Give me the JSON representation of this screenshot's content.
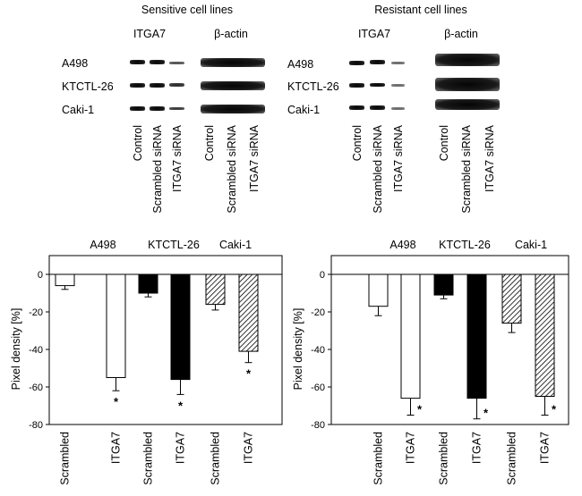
{
  "blots": [
    {
      "title": "Sensitive cell lines",
      "panels": [
        "ITGA7",
        "β-actin"
      ],
      "rows": [
        "A498",
        "KTCTL-26",
        "Caki-1"
      ],
      "lanes": [
        "Control",
        "Scrambled siRNA",
        "ITGA7 siRNA"
      ]
    },
    {
      "title": "Resistant cell lines",
      "panels": [
        "ITGA7",
        "β-actin"
      ],
      "rows": [
        "A498",
        "KTCTL-26",
        "Caki-1"
      ],
      "lanes": [
        "Control",
        "Scrambled siRNA",
        "ITGA7 siRNA"
      ]
    }
  ],
  "chart_data": [
    {
      "type": "bar",
      "group_labels": [
        "A498",
        "KTCTL-26",
        "Caki-1"
      ],
      "categories": [
        "Scrambled",
        "ITGA7",
        "Scrambled",
        "ITGA7",
        "Scrambled",
        "ITGA7"
      ],
      "values": [
        -6,
        -55,
        -10,
        -56,
        -16,
        -41
      ],
      "errors": [
        2,
        7,
        2,
        8,
        3,
        6
      ],
      "significant": [
        false,
        true,
        false,
        true,
        false,
        true
      ],
      "fills": [
        "white",
        "white",
        "black",
        "black",
        "hatched",
        "hatched"
      ],
      "ylabel": "Pixel density [%]",
      "yticks": [
        0,
        -20,
        -40,
        -60,
        -80
      ],
      "ylim": [
        -80,
        10
      ],
      "marker": "*"
    },
    {
      "type": "bar",
      "group_labels": [
        "A498",
        "KTCTL-26",
        "Caki-1"
      ],
      "categories": [
        "Scrambled",
        "ITGA7",
        "Scrambled",
        "ITGA7",
        "Scrambled",
        "ITGA7"
      ],
      "values": [
        -17,
        -66,
        -11,
        -66,
        -26,
        -65
      ],
      "errors": [
        5,
        9,
        2,
        11,
        5,
        10
      ],
      "significant": [
        false,
        true,
        false,
        true,
        false,
        true
      ],
      "fills": [
        "white",
        "white",
        "black",
        "black",
        "hatched",
        "hatched"
      ],
      "ylabel": "Pixel density [%]",
      "yticks": [
        0,
        -20,
        -40,
        -60,
        -80
      ],
      "ylim": [
        -80,
        10
      ],
      "marker": "*"
    }
  ]
}
